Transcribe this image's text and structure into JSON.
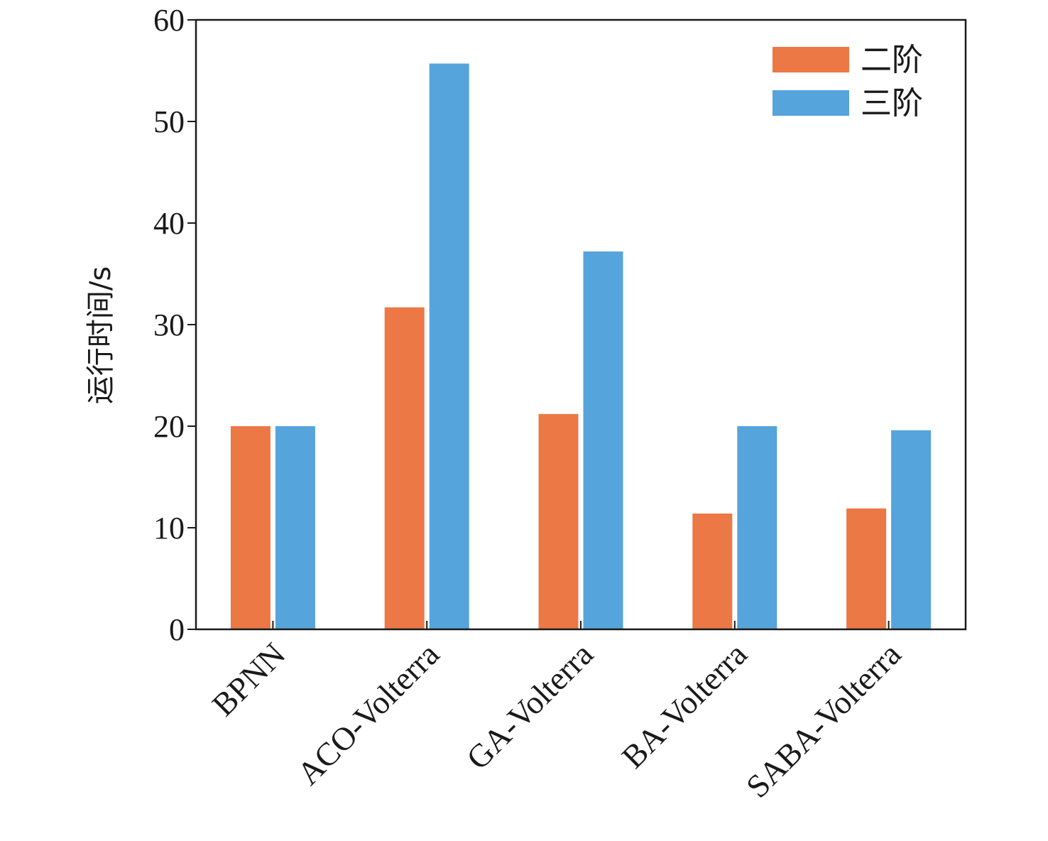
{
  "chart_data": {
    "type": "bar",
    "title": "",
    "xlabel": "",
    "ylabel": "运行时间/s",
    "ylim": [
      0,
      60
    ],
    "yticks": [
      0,
      10,
      20,
      30,
      40,
      50,
      60
    ],
    "grid": false,
    "legend_position": "top-right",
    "categories": [
      "BPNN",
      "ACO-Volterra",
      "GA-Volterra",
      "BA-Volterra",
      "SABA-Volterra"
    ],
    "series": [
      {
        "name": "二阶",
        "color": "#ec7845",
        "values": [
          20.0,
          31.7,
          21.2,
          11.4,
          11.9
        ]
      },
      {
        "name": "三阶",
        "color": "#55a4dc",
        "values": [
          20.0,
          55.7,
          37.2,
          20.0,
          19.6
        ]
      }
    ]
  }
}
